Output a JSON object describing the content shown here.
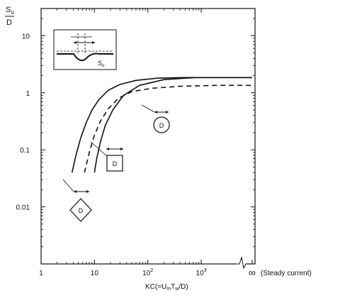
{
  "chart_data": {
    "type": "line",
    "title": "",
    "xlabel": "KC(=UₘTᵥᵥ/D)",
    "xlabel_parts": [
      "KC(=U",
      "m",
      "T",
      "w",
      "/D)"
    ],
    "ylabel_top": "S",
    "ylabel_sub": "o",
    "ylabel_bottom": "D",
    "xscale": "log",
    "yscale": "log",
    "xlim": [
      1,
      3000
    ],
    "ylim": [
      0.001,
      30
    ],
    "x_ticks": [
      {
        "value": 1,
        "label": "1",
        "sup": ""
      },
      {
        "value": 10,
        "label": "10",
        "sup": ""
      },
      {
        "value": 100,
        "label": "10",
        "sup": "2"
      },
      {
        "value": 1000,
        "label": "10",
        "sup": "3"
      }
    ],
    "x_break_label": "∞",
    "x_break_note": "(Steady current)",
    "y_ticks": [
      {
        "value": 0.01,
        "label": "0.01"
      },
      {
        "value": 0.1,
        "label": "0.1"
      },
      {
        "value": 1,
        "label": "1"
      },
      {
        "value": 10,
        "label": "10"
      }
    ],
    "series": [
      {
        "style": "solid",
        "x": [
          3.8,
          4.5,
          5.5,
          7,
          9,
          12,
          18,
          30,
          60,
          150,
          500,
          2000,
          "∞"
        ],
        "y": [
          0.04,
          0.08,
          0.16,
          0.3,
          0.5,
          0.75,
          1.1,
          1.4,
          1.65,
          1.8,
          1.85,
          1.85,
          1.85
        ]
      },
      {
        "style": "solid",
        "x": [
          10,
          11,
          13,
          16,
          22,
          35,
          70,
          200,
          800,
          2000,
          "∞"
        ],
        "y": [
          0.04,
          0.07,
          0.14,
          0.27,
          0.5,
          0.9,
          1.35,
          1.7,
          1.85,
          1.85,
          1.85
        ]
      },
      {
        "style": "dashed",
        "x": [
          6.5,
          8,
          10,
          13,
          18,
          28,
          50,
          120,
          400,
          2000,
          "∞"
        ],
        "y": [
          0.04,
          0.09,
          0.18,
          0.32,
          0.52,
          0.8,
          1.05,
          1.2,
          1.3,
          1.35,
          1.35
        ]
      }
    ],
    "callouts": [
      {
        "shape": "circle",
        "text": "D"
      },
      {
        "shape": "square",
        "text": "D"
      },
      {
        "shape": "diamond",
        "text": "D"
      }
    ],
    "inset_label": "S",
    "inset_label_sub": "o",
    "grid": false,
    "legend": "none"
  },
  "colors": {
    "ink": "#111111",
    "background": "#ffffff"
  }
}
